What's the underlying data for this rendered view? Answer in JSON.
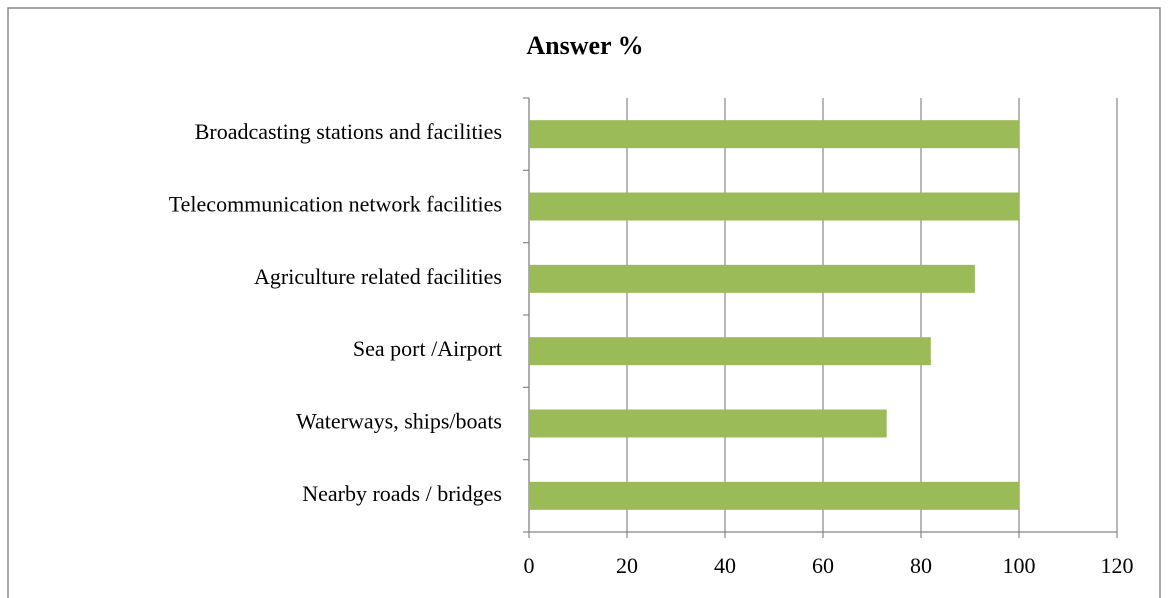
{
  "chart_data": {
    "type": "bar",
    "orientation": "horizontal",
    "title": "Answer %",
    "categories": [
      "Broadcasting stations and facilities",
      "Telecommunication network facilities",
      "Agriculture related facilities",
      "Sea port /Airport",
      "Waterways, ships/boats",
      "Nearby roads / bridges"
    ],
    "values": [
      100,
      100,
      91,
      82,
      73,
      100
    ],
    "color": "#9bbb59",
    "xlim": [
      0,
      120
    ],
    "xticks": [
      0,
      20,
      40,
      60,
      80,
      100,
      120
    ],
    "grid": true
  }
}
